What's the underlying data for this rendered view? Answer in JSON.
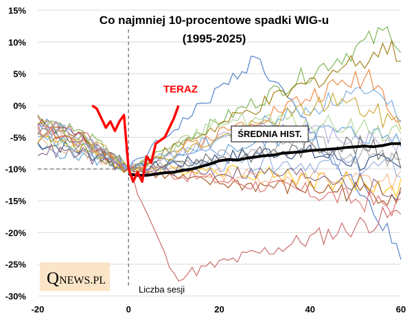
{
  "chart_data": {
    "type": "line",
    "title_line1": "Co najmniej 10-procentowe spadki WIG-u",
    "title_line2": "(1995-2025)",
    "xlabel": "Liczba sesji",
    "ylabel": "",
    "xlim": [
      -20,
      60
    ],
    "ylim": [
      -30,
      15
    ],
    "xticks": [
      "-20",
      "0",
      "20",
      "40",
      "60"
    ],
    "xtick_values": [
      -20,
      0,
      20,
      40,
      60
    ],
    "yticks": [
      "15%",
      "10%",
      "5%",
      "0%",
      "-5%",
      "-10%",
      "-15%",
      "-20%",
      "-25%",
      "-30%"
    ],
    "ytick_values": [
      15,
      10,
      5,
      0,
      -5,
      -10,
      -15,
      -20,
      -25,
      -30
    ],
    "reference_lines": {
      "x": 0,
      "y": -10
    },
    "current": {
      "name": "TERAZ",
      "color": "#ff0000",
      "x": [
        -8,
        -7,
        -6,
        -5,
        -4,
        -3,
        -2,
        -1,
        0,
        1,
        2,
        3,
        4,
        5,
        6,
        7,
        8,
        9,
        10,
        11
      ],
      "y": [
        0,
        -0.5,
        -2,
        -3.5,
        -2.5,
        -4,
        -2.5,
        -1.5,
        -10,
        -12,
        -10.5,
        -12,
        -8,
        -9,
        -6,
        -5.5,
        -5,
        -3.5,
        -2,
        0
      ]
    },
    "average": {
      "name": "ŚREDNIA HIST.",
      "color": "#000000",
      "x": [
        0,
        2,
        4,
        6,
        8,
        10,
        12,
        14,
        16,
        18,
        20,
        22,
        24,
        26,
        28,
        30,
        32,
        34,
        36,
        38,
        40,
        42,
        44,
        46,
        48,
        50,
        52,
        54,
        56,
        58,
        60
      ],
      "y": [
        -10.8,
        -11,
        -11,
        -10.8,
        -10.6,
        -10.5,
        -10.2,
        -10,
        -9.6,
        -9.2,
        -8.7,
        -8.5,
        -8.6,
        -8.3,
        -8.1,
        -7.9,
        -7.8,
        -7.5,
        -7.4,
        -7.3,
        -7.1,
        -7.0,
        -6.9,
        -6.8,
        -6.6,
        -6.5,
        -6.4,
        -6.5,
        -6.3,
        -6.0,
        -6.0
      ]
    },
    "historical_series": [
      {
        "color": "#4472c4",
        "y_start": -3,
        "y_end": -23,
        "peak_x": 28,
        "peak_y": 7.5
      },
      {
        "color": "#ed7d31",
        "y_start": -4,
        "y_end": -2,
        "peak_x": 53,
        "peak_y": 5
      },
      {
        "color": "#a5a5a5",
        "y_start": -3.5,
        "y_end": -9,
        "peak_x": 40,
        "peak_y": -6
      },
      {
        "color": "#ffc000",
        "y_start": -5,
        "y_end": -13,
        "peak_x": 20,
        "peak_y": -10
      },
      {
        "color": "#5b9bd5",
        "y_start": -7,
        "y_end": -5,
        "peak_x": 42,
        "peak_y": -4
      },
      {
        "color": "#70ad47",
        "y_start": -2,
        "y_end": 9,
        "peak_x": 58,
        "peak_y": 12
      },
      {
        "color": "#264478",
        "y_start": -6,
        "y_end": -10,
        "peak_x": 35,
        "peak_y": -7
      },
      {
        "color": "#9e480e",
        "y_start": -3,
        "y_end": -14,
        "peak_x": 15,
        "peak_y": -12
      },
      {
        "color": "#636363",
        "y_start": -4,
        "y_end": -8,
        "peak_x": 48,
        "peak_y": -6
      },
      {
        "color": "#997300",
        "y_start": -5,
        "y_end": 8,
        "peak_x": 56,
        "peak_y": 9
      },
      {
        "color": "#c55a5a",
        "y_start": -2.5,
        "y_end": -17,
        "peak_x": 10,
        "peak_y": -27
      },
      {
        "color": "#b4a7d6",
        "y_start": -4,
        "y_end": -6,
        "peak_x": 30,
        "peak_y": -3
      },
      {
        "color": "#f4b183",
        "y_start": -6,
        "y_end": -12,
        "peak_x": 25,
        "peak_y": -11
      },
      {
        "color": "#8faadc",
        "y_start": -3,
        "y_end": -10,
        "peak_x": 38,
        "peak_y": -9
      },
      {
        "color": "#a9d18e",
        "y_start": -5,
        "y_end": -4,
        "peak_x": 22,
        "peak_y": -2
      },
      {
        "color": "#7f6084",
        "y_start": -7,
        "y_end": -14,
        "peak_x": 44,
        "peak_y": -11
      },
      {
        "color": "#e06666",
        "y_start": -4,
        "y_end": -16,
        "peak_x": 34,
        "peak_y": -13
      },
      {
        "color": "#6fa8dc",
        "y_start": -5.5,
        "y_end": -1,
        "peak_x": 50,
        "peak_y": 2
      },
      {
        "color": "#c9a227",
        "y_start": -3,
        "y_end": -3,
        "peak_x": 46,
        "peak_y": 1
      }
    ],
    "annotations": {
      "current_label": "TERAZ",
      "average_label": "ŚREDNIA HIST."
    }
  },
  "logo": {
    "q": "Q",
    "rest": "NEWS.PL"
  }
}
